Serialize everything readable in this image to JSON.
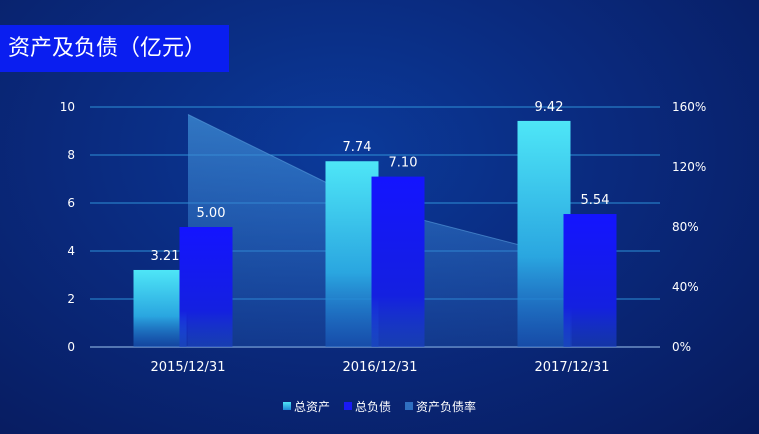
{
  "title": "资产及负债（亿元）",
  "chart_data": {
    "type": "bar",
    "title": "资产及负债（亿元）",
    "categories": [
      "2015/12/31",
      "2016/12/31",
      "2017/12/31"
    ],
    "series": [
      {
        "name": "总资产",
        "values": [
          3.21,
          7.74,
          9.42
        ],
        "labels": [
          "3.21",
          "7.74",
          "9.42"
        ],
        "color": "#3fd8f2"
      },
      {
        "name": "总负债",
        "values": [
          5.0,
          7.1,
          5.54
        ],
        "labels": [
          "5.00",
          "7.10",
          "5.54"
        ],
        "color": "#1a1af5"
      },
      {
        "name": "资产负债率",
        "type": "area",
        "axis": "right",
        "values": [
          155,
          92,
          59
        ],
        "color": "#2f78c8"
      }
    ],
    "ylim": [
      0,
      10
    ],
    "yticks": [
      "0",
      "2",
      "4",
      "6",
      "8",
      "10"
    ],
    "y2lim": [
      0,
      160
    ],
    "y2ticks": [
      "0%",
      "40%",
      "80%",
      "120%",
      "160%"
    ],
    "legend": "bottom",
    "grid": true
  },
  "colors": {
    "grid": "#2d8fd6",
    "axis_text": "#ffffff",
    "title_bg": "#0a1ef0"
  }
}
